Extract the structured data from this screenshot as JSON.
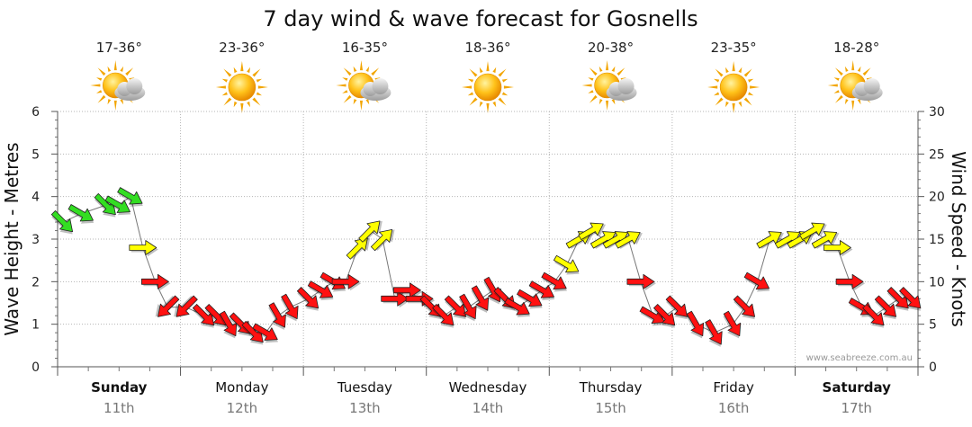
{
  "chart_data": {
    "type": "line",
    "title": "7 day wind & wave forecast for Gosnells",
    "ylabel_left": "Wave Height - Metres",
    "ylabel_right": "Wind Speed - Knots",
    "ylim_left": [
      0,
      6
    ],
    "ylim_right": [
      0,
      30
    ],
    "yticks_left": [
      "0",
      "1",
      "2",
      "3",
      "4",
      "5",
      "6"
    ],
    "yticks_right": [
      "0",
      "5",
      "10",
      "15",
      "20",
      "25",
      "30"
    ],
    "credit": "www.seabreeze.com.au",
    "grid": true,
    "days": [
      {
        "name": "Sunday",
        "date": "11th",
        "temp": "17-36°",
        "weather": "partly-cloudy",
        "bold": true
      },
      {
        "name": "Monday",
        "date": "12th",
        "temp": "23-36°",
        "weather": "sunny",
        "bold": false
      },
      {
        "name": "Tuesday",
        "date": "13th",
        "temp": "16-35°",
        "weather": "partly-cloudy",
        "bold": false
      },
      {
        "name": "Wednesday",
        "date": "14th",
        "temp": "18-36°",
        "weather": "sunny",
        "bold": false
      },
      {
        "name": "Thursday",
        "date": "15th",
        "temp": "20-38°",
        "weather": "partly-cloudy",
        "bold": false
      },
      {
        "name": "Friday",
        "date": "16th",
        "temp": "23-35°",
        "weather": "sunny",
        "bold": false
      },
      {
        "name": "Saturday",
        "date": "17th",
        "temp": "18-28°",
        "weather": "partly-cloudy",
        "bold": true
      }
    ],
    "wind_colors": {
      "light": "#ffff00",
      "moderate": "#33dd22",
      "strong": "#ff1111"
    },
    "series": [
      {
        "name": "Wind Speed - Knots",
        "unit": "knots",
        "x_day": [
          0.0,
          0.15,
          0.35,
          0.45,
          0.55,
          0.65,
          0.75,
          0.85,
          1.0,
          1.15,
          1.25,
          1.35,
          1.45,
          1.55,
          1.65,
          1.75,
          1.85,
          2.0,
          2.1,
          2.2,
          2.3,
          2.4,
          2.5,
          2.6,
          2.7,
          2.8,
          2.9,
          3.0,
          3.1,
          3.2,
          3.3,
          3.4,
          3.5,
          3.6,
          3.7,
          3.8,
          3.9,
          4.0,
          4.1,
          4.2,
          4.3,
          4.4,
          4.5,
          4.6,
          4.7,
          4.8,
          4.9,
          5.0,
          5.15,
          5.3,
          5.45,
          5.55,
          5.65,
          5.75,
          5.9,
          6.0,
          6.1,
          6.2,
          6.3,
          6.4,
          6.5,
          6.6,
          6.7,
          6.8,
          6.9
        ],
        "values": [
          17,
          18,
          19,
          19,
          20,
          14,
          10,
          7,
          7,
          6,
          6,
          5,
          5,
          4,
          4,
          6,
          7,
          8,
          9,
          10,
          10,
          14,
          16,
          15,
          8,
          9,
          8,
          7,
          6,
          7,
          7,
          8,
          9,
          8,
          7,
          8,
          9,
          10,
          12,
          15,
          16,
          15,
          15,
          15,
          10,
          6,
          6,
          7,
          5,
          4,
          5,
          7,
          10,
          15,
          15,
          15,
          16,
          15,
          14,
          10,
          7,
          6,
          7,
          8,
          8
        ],
        "dir_deg": [
          315,
          300,
          315,
          300,
          300,
          270,
          270,
          45,
          45,
          315,
          315,
          330,
          315,
          315,
          300,
          330,
          330,
          315,
          300,
          300,
          270,
          225,
          225,
          225,
          270,
          270,
          270,
          315,
          315,
          315,
          330,
          330,
          330,
          315,
          300,
          300,
          300,
          300,
          300,
          240,
          240,
          240,
          240,
          240,
          270,
          300,
          315,
          315,
          330,
          330,
          330,
          315,
          300,
          240,
          240,
          240,
          240,
          240,
          270,
          270,
          300,
          315,
          315,
          315,
          315
        ]
      }
    ]
  }
}
